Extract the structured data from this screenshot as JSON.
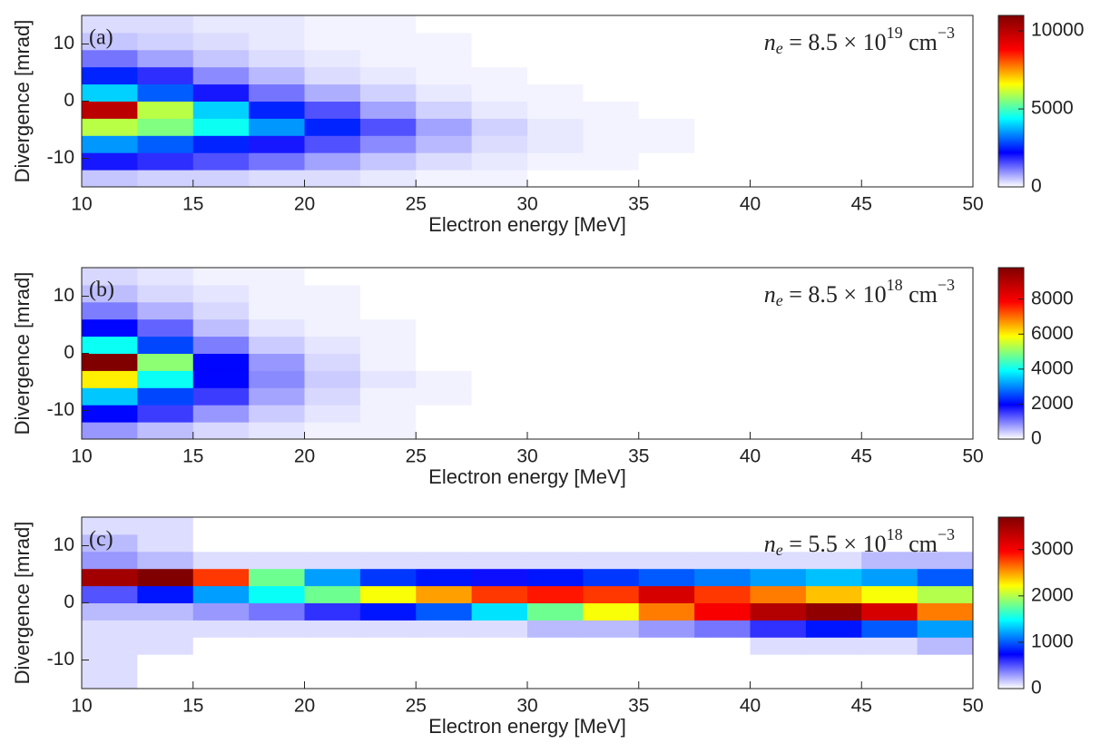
{
  "chart_data": [
    {
      "type": "heatmap",
      "panel_label": "(a)",
      "annotation": {
        "variable": "n",
        "subscript": "e",
        "text": " = 8.5 × 10",
        "exponent": "19",
        "unit": " cm",
        "unit_exponent": "−3"
      },
      "xlabel": "Electron energy [MeV]",
      "ylabel": "Divergence [mrad]",
      "xlim": [
        10,
        50
      ],
      "xticks": [
        10,
        15,
        20,
        25,
        30,
        35,
        40,
        45,
        50
      ],
      "ylim": [
        -15,
        15
      ],
      "yticks": [
        -10,
        0,
        10
      ],
      "x_bins": [
        10,
        12.5,
        15,
        17.5,
        20,
        22.5,
        25,
        27.5,
        30,
        32.5,
        35,
        37.5,
        40,
        42.5,
        45,
        47.5,
        50
      ],
      "y_bins": [
        -15,
        -12,
        -9,
        -6,
        -3,
        0,
        3,
        6,
        9,
        12,
        15
      ],
      "values": [
        [
          500,
          400,
          400,
          300,
          300,
          200,
          100,
          100,
          0,
          0,
          0,
          0,
          0,
          0,
          0,
          0
        ],
        [
          2000,
          1800,
          1500,
          1200,
          800,
          500,
          300,
          200,
          100,
          100,
          0,
          0,
          0,
          0,
          0,
          0
        ],
        [
          3500,
          3000,
          2500,
          2000,
          1500,
          1000,
          600,
          300,
          200,
          100,
          100,
          0,
          0,
          0,
          0,
          0
        ],
        [
          6000,
          5500,
          4500,
          3500,
          2500,
          1500,
          800,
          400,
          200,
          100,
          100,
          0,
          0,
          0,
          0,
          0
        ],
        [
          10000,
          6000,
          4000,
          2500,
          1500,
          800,
          400,
          200,
          100,
          100,
          0,
          0,
          0,
          0,
          0,
          0
        ],
        [
          4000,
          3000,
          2000,
          1200,
          700,
          400,
          200,
          100,
          100,
          0,
          0,
          0,
          0,
          0,
          0,
          0
        ],
        [
          2500,
          1800,
          1000,
          600,
          300,
          200,
          100,
          100,
          0,
          0,
          0,
          0,
          0,
          0,
          0,
          0
        ],
        [
          1200,
          800,
          500,
          300,
          200,
          100,
          100,
          0,
          0,
          0,
          0,
          0,
          0,
          0,
          0,
          0
        ],
        [
          500,
          400,
          300,
          200,
          100,
          100,
          100,
          0,
          0,
          0,
          0,
          0,
          0,
          0,
          0,
          0
        ],
        [
          300,
          300,
          200,
          200,
          100,
          100,
          0,
          0,
          0,
          0,
          0,
          0,
          0,
          0,
          0,
          0
        ]
      ],
      "clim": [
        0,
        11000
      ],
      "cticks": [
        0,
        5000,
        10000
      ],
      "colormap": [
        "#ffffff",
        "#0000ff",
        "#00ffff",
        "#ffff00",
        "#ff0000",
        "#800000"
      ]
    },
    {
      "type": "heatmap",
      "panel_label": "(b)",
      "annotation": {
        "variable": "n",
        "subscript": "e",
        "text": " = 8.5 × 10",
        "exponent": "18",
        "unit": " cm",
        "unit_exponent": "−3"
      },
      "xlabel": "Electron energy [MeV]",
      "ylabel": "Divergence [mrad]",
      "xlim": [
        10,
        50
      ],
      "xticks": [
        10,
        15,
        20,
        25,
        30,
        35,
        40,
        45,
        50
      ],
      "ylim": [
        -15,
        15
      ],
      "yticks": [
        -10,
        0,
        10
      ],
      "x_bins": [
        10,
        12.5,
        15,
        17.5,
        20,
        22.5,
        25,
        27.5,
        30,
        32.5,
        35,
        37.5,
        40,
        42.5,
        45,
        47.5,
        50
      ],
      "y_bins": [
        -15,
        -12,
        -9,
        -6,
        -3,
        0,
        3,
        6,
        9,
        12,
        15
      ],
      "values": [
        [
          800,
          500,
          300,
          200,
          100,
          100,
          0,
          0,
          0,
          0,
          0,
          0,
          0,
          0,
          0,
          0
        ],
        [
          2000,
          1500,
          800,
          400,
          200,
          100,
          0,
          0,
          0,
          0,
          0,
          0,
          0,
          0,
          0,
          0
        ],
        [
          3500,
          2500,
          1500,
          700,
          300,
          100,
          100,
          0,
          0,
          0,
          0,
          0,
          0,
          0,
          0,
          0
        ],
        [
          6000,
          4000,
          2000,
          900,
          400,
          200,
          100,
          0,
          0,
          0,
          0,
          0,
          0,
          0,
          0,
          0
        ],
        [
          9800,
          5000,
          2000,
          800,
          300,
          100,
          0,
          0,
          0,
          0,
          0,
          0,
          0,
          0,
          0,
          0
        ],
        [
          4000,
          2500,
          1000,
          400,
          200,
          100,
          0,
          0,
          0,
          0,
          0,
          0,
          0,
          0,
          0,
          0
        ],
        [
          2000,
          1200,
          500,
          200,
          100,
          100,
          0,
          0,
          0,
          0,
          0,
          0,
          0,
          0,
          0,
          0
        ],
        [
          1000,
          600,
          300,
          100,
          100,
          0,
          0,
          0,
          0,
          0,
          0,
          0,
          0,
          0,
          0,
          0
        ],
        [
          500,
          300,
          200,
          100,
          100,
          0,
          0,
          0,
          0,
          0,
          0,
          0,
          0,
          0,
          0,
          0
        ],
        [
          300,
          200,
          100,
          100,
          0,
          0,
          0,
          0,
          0,
          0,
          0,
          0,
          0,
          0,
          0,
          0
        ]
      ],
      "clim": [
        0,
        9800
      ],
      "cticks": [
        0,
        2000,
        4000,
        6000,
        8000
      ],
      "colormap": [
        "#ffffff",
        "#0000ff",
        "#00ffff",
        "#ffff00",
        "#ff0000",
        "#800000"
      ]
    },
    {
      "type": "heatmap",
      "panel_label": "(c)",
      "annotation": {
        "variable": "n",
        "subscript": "e",
        "text": " = 5.5 × 10",
        "exponent": "18",
        "unit": " cm",
        "unit_exponent": "−3"
      },
      "xlabel": "Electron energy [MeV]",
      "ylabel": "Divergence [mrad]",
      "xlim": [
        10,
        50
      ],
      "xticks": [
        10,
        15,
        20,
        25,
        30,
        35,
        40,
        45,
        50
      ],
      "ylim": [
        -15,
        15
      ],
      "yticks": [
        -10,
        0,
        10
      ],
      "x_bins": [
        10,
        12.5,
        15,
        17.5,
        20,
        22.5,
        25,
        27.5,
        30,
        32.5,
        35,
        37.5,
        40,
        42.5,
        45,
        47.5,
        50
      ],
      "y_bins": [
        -15,
        -12,
        -9,
        -6,
        -3,
        0,
        3,
        6,
        9,
        12,
        15
      ],
      "values": [
        [
          100,
          0,
          0,
          0,
          0,
          0,
          0,
          0,
          0,
          0,
          0,
          0,
          0,
          0,
          0,
          0
        ],
        [
          100,
          0,
          0,
          0,
          0,
          0,
          0,
          0,
          0,
          0,
          0,
          0,
          0,
          0,
          0,
          0
        ],
        [
          100,
          100,
          0,
          0,
          0,
          0,
          0,
          0,
          0,
          0,
          0,
          0,
          100,
          100,
          100,
          200
        ],
        [
          100,
          100,
          100,
          100,
          100,
          100,
          100,
          100,
          200,
          200,
          300,
          400,
          600,
          800,
          1000,
          1200
        ],
        [
          200,
          200,
          300,
          400,
          600,
          800,
          1000,
          1400,
          1800,
          2200,
          2600,
          3000,
          3400,
          3600,
          3200,
          2600
        ],
        [
          500,
          800,
          1200,
          1500,
          1800,
          2200,
          2500,
          2800,
          2900,
          2800,
          3200,
          2800,
          2600,
          2400,
          2200,
          2000
        ],
        [
          3500,
          3700,
          2800,
          1800,
          1200,
          900,
          800,
          700,
          800,
          900,
          1000,
          1100,
          1200,
          1300,
          1200,
          1000
        ],
        [
          300,
          200,
          100,
          100,
          100,
          100,
          100,
          100,
          100,
          100,
          100,
          100,
          100,
          100,
          200,
          200
        ],
        [
          200,
          100,
          0,
          0,
          0,
          0,
          0,
          0,
          0,
          0,
          0,
          0,
          0,
          0,
          0,
          0
        ],
        [
          100,
          100,
          0,
          0,
          0,
          0,
          0,
          0,
          0,
          0,
          0,
          0,
          0,
          0,
          0,
          0
        ]
      ],
      "clim": [
        0,
        3700
      ],
      "cticks": [
        0,
        1000,
        2000,
        3000
      ],
      "colormap": [
        "#ffffff",
        "#0000ff",
        "#00ffff",
        "#ffff00",
        "#ff0000",
        "#800000"
      ]
    }
  ]
}
